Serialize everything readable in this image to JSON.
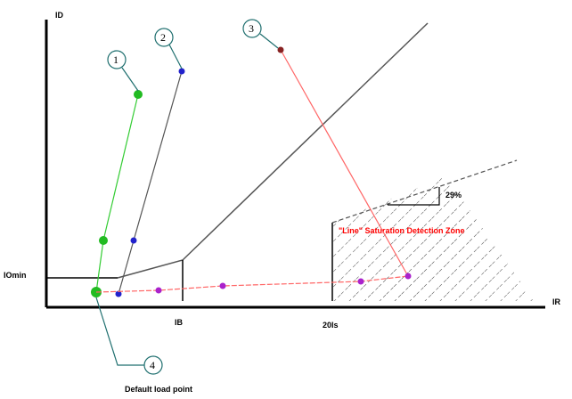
{
  "axes": {
    "y_label": "ID",
    "x_label": "IR",
    "y_tick_label": "IOmin",
    "x_tick_1": "IB",
    "x_tick_2": "20Is"
  },
  "callouts": [
    {
      "number": "1"
    },
    {
      "number": "2"
    },
    {
      "number": "3"
    },
    {
      "number": "4"
    }
  ],
  "zone_label": "\"Line\" Saturation Detection Zone",
  "angle_label": "29%",
  "default_point_label": "Default load point",
  "colors": {
    "green_curve": "#33cc33",
    "green_marker": "#22bb22",
    "black_curve": "#555555",
    "blue_marker": "#2222cc",
    "red_curve": "#ff6666",
    "red_label": "#ff0000",
    "purple_marker": "#aa22cc",
    "callout_teal": "#1f6f6f",
    "hatch": "#444444"
  }
}
